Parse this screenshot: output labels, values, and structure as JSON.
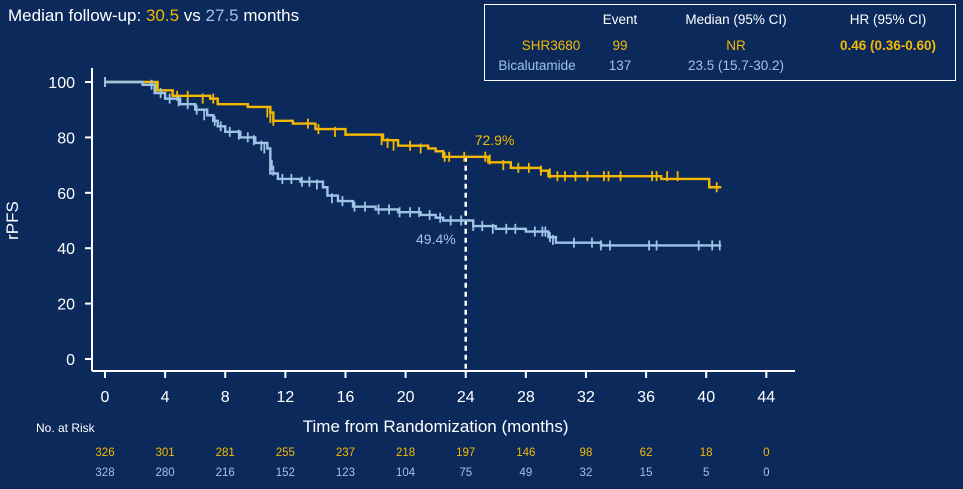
{
  "headline": {
    "prefix": "Median follow-up: ",
    "value_a": "30.5",
    "middle": " vs ",
    "value_b": "27.5",
    "suffix": " months"
  },
  "legend_table": {
    "headers": [
      "",
      "Event",
      "Median (95% CI)",
      "HR (95% CI)"
    ],
    "rows": [
      {
        "arm": "SHR3680",
        "event": "99",
        "median": "NR",
        "hr": "0.46 (0.36-0.60)"
      },
      {
        "arm": "Bicalutamide",
        "event": "137",
        "median": "23.5 (15.7-30.2)",
        "hr": ""
      }
    ]
  },
  "colors": {
    "background": "#0b2a5b",
    "series_a": "#f5b800",
    "series_b": "#9ec3e6",
    "axis": "#ffffff"
  },
  "chart_data": {
    "type": "line",
    "title": "",
    "xlabel": "Time from Randomization (months)",
    "ylabel": "rPFS",
    "xlim": [
      0,
      44
    ],
    "ylim": [
      0,
      100
    ],
    "x_ticks": [
      0,
      4,
      8,
      12,
      16,
      20,
      24,
      28,
      32,
      36,
      40,
      44
    ],
    "y_ticks": [
      0,
      20,
      40,
      60,
      80,
      100
    ],
    "grid": false,
    "step": true,
    "series": [
      {
        "name": "SHR3680",
        "color": "#f5b800",
        "points": [
          [
            0,
            100
          ],
          [
            3,
            100
          ],
          [
            3.5,
            97
          ],
          [
            4.5,
            95
          ],
          [
            7,
            94
          ],
          [
            7.5,
            92
          ],
          [
            9.5,
            91
          ],
          [
            11,
            89
          ],
          [
            11.2,
            86
          ],
          [
            12.5,
            85
          ],
          [
            14,
            83
          ],
          [
            16,
            81
          ],
          [
            18.5,
            79
          ],
          [
            19.5,
            77
          ],
          [
            21.5,
            76
          ],
          [
            22,
            75
          ],
          [
            22.5,
            73
          ],
          [
            25,
            73
          ],
          [
            25.5,
            71
          ],
          [
            27,
            69
          ],
          [
            29,
            68
          ],
          [
            29.5,
            66
          ],
          [
            34,
            66
          ],
          [
            37,
            65
          ],
          [
            40,
            65
          ],
          [
            40.2,
            62
          ],
          [
            41,
            62
          ]
        ],
        "censors": [
          [
            0,
            100
          ],
          [
            3.4,
            98
          ],
          [
            4.8,
            95
          ],
          [
            5.5,
            95
          ],
          [
            6.5,
            94
          ],
          [
            7.2,
            94
          ],
          [
            10.8,
            89
          ],
          [
            11,
            87
          ],
          [
            11.2,
            86
          ],
          [
            13.5,
            85
          ],
          [
            14.2,
            83
          ],
          [
            15.3,
            82
          ],
          [
            18.4,
            79
          ],
          [
            18.8,
            78
          ],
          [
            19.2,
            77
          ],
          [
            20.3,
            77
          ],
          [
            21,
            76
          ],
          [
            22.6,
            73
          ],
          [
            22.9,
            73
          ],
          [
            23.9,
            73
          ],
          [
            25.3,
            73
          ],
          [
            25.6,
            72
          ],
          [
            26.5,
            70
          ],
          [
            27.5,
            69
          ],
          [
            28.2,
            69
          ],
          [
            29,
            68
          ],
          [
            29.6,
            67
          ],
          [
            30.1,
            66
          ],
          [
            30.6,
            66
          ],
          [
            31.3,
            66
          ],
          [
            32.1,
            66
          ],
          [
            33.2,
            66
          ],
          [
            33.5,
            66
          ],
          [
            34.3,
            66
          ],
          [
            36.4,
            66
          ],
          [
            36.7,
            66
          ],
          [
            37.4,
            66
          ],
          [
            38.1,
            66
          ],
          [
            40.7,
            62
          ]
        ]
      },
      {
        "name": "Bicalutamide",
        "color": "#9ec3e6",
        "points": [
          [
            0,
            100
          ],
          [
            2.5,
            99
          ],
          [
            3.3,
            96
          ],
          [
            4,
            94
          ],
          [
            5,
            92
          ],
          [
            6,
            90
          ],
          [
            6.8,
            88
          ],
          [
            7.2,
            86
          ],
          [
            7.5,
            84
          ],
          [
            8,
            82
          ],
          [
            9,
            80
          ],
          [
            10,
            78
          ],
          [
            10.8,
            76
          ],
          [
            11,
            70
          ],
          [
            11,
            67
          ],
          [
            11.5,
            65
          ],
          [
            13,
            64
          ],
          [
            14.5,
            62
          ],
          [
            14.8,
            59
          ],
          [
            15.5,
            57
          ],
          [
            16.5,
            55
          ],
          [
            18,
            54
          ],
          [
            19.5,
            53
          ],
          [
            21,
            52
          ],
          [
            22,
            51
          ],
          [
            22.5,
            50
          ],
          [
            24.5,
            48
          ],
          [
            26,
            47
          ],
          [
            28,
            46
          ],
          [
            29.5,
            44
          ],
          [
            30,
            42
          ],
          [
            32,
            42
          ],
          [
            33,
            41
          ],
          [
            41,
            41
          ]
        ],
        "censors": [
          [
            0,
            100
          ],
          [
            3.1,
            99
          ],
          [
            3.7,
            96
          ],
          [
            4.3,
            94
          ],
          [
            4.9,
            93
          ],
          [
            5.5,
            92
          ],
          [
            6.1,
            90
          ],
          [
            6.6,
            88
          ],
          [
            7.3,
            86
          ],
          [
            7.7,
            84
          ],
          [
            8.3,
            82
          ],
          [
            8.9,
            81
          ],
          [
            9.5,
            80
          ],
          [
            9.9,
            79
          ],
          [
            10.4,
            77
          ],
          [
            10.6,
            76
          ],
          [
            11.1,
            70
          ],
          [
            11.2,
            68
          ],
          [
            11.8,
            65
          ],
          [
            12.4,
            65
          ],
          [
            13.1,
            64
          ],
          [
            13.6,
            64
          ],
          [
            14.1,
            63
          ],
          [
            15.1,
            58
          ],
          [
            15.8,
            57
          ],
          [
            16.6,
            55
          ],
          [
            17.3,
            55
          ],
          [
            18.2,
            54
          ],
          [
            18.9,
            54
          ],
          [
            19.6,
            53
          ],
          [
            20.3,
            53
          ],
          [
            20.9,
            53
          ],
          [
            21.6,
            52
          ],
          [
            22.3,
            51
          ],
          [
            23,
            50
          ],
          [
            23.7,
            50
          ],
          [
            24.5,
            48
          ],
          [
            25.1,
            48
          ],
          [
            25.8,
            47
          ],
          [
            26.7,
            47
          ],
          [
            27.3,
            47
          ],
          [
            28.6,
            46
          ],
          [
            29.1,
            46
          ],
          [
            29.3,
            46
          ],
          [
            29.6,
            44
          ],
          [
            29.8,
            43
          ],
          [
            31.2,
            42
          ],
          [
            32.4,
            42
          ],
          [
            33,
            41
          ],
          [
            33.6,
            41
          ],
          [
            36.2,
            41
          ],
          [
            36.7,
            41
          ],
          [
            39.5,
            41
          ],
          [
            40.4,
            41
          ],
          [
            40.9,
            41
          ]
        ]
      }
    ],
    "annotations": [
      {
        "text": "72.9%",
        "x": 24,
        "y": 72.9,
        "series": "SHR3680"
      },
      {
        "text": "49.4%",
        "x": 24,
        "y": 49.4,
        "series": "Bicalutamide"
      }
    ],
    "reference_line": {
      "x": 24,
      "style": "dashed"
    },
    "risk_table": {
      "title": "No. at Risk",
      "times": [
        0,
        4,
        8,
        12,
        16,
        20,
        24,
        28,
        32,
        36,
        40,
        44
      ],
      "rows": [
        {
          "name": "SHR3680",
          "values": [
            326,
            301,
            281,
            255,
            237,
            218,
            197,
            146,
            98,
            62,
            18,
            0
          ]
        },
        {
          "name": "Bicalutamide",
          "values": [
            328,
            280,
            216,
            152,
            123,
            104,
            75,
            49,
            32,
            15,
            5,
            0
          ]
        }
      ]
    }
  }
}
